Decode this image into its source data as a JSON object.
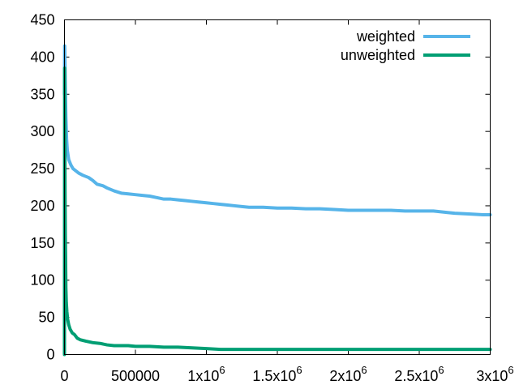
{
  "chart_data": {
    "type": "line",
    "title": "",
    "xlabel": "",
    "ylabel": "",
    "xlim": [
      0,
      3000000
    ],
    "ylim": [
      0,
      450
    ],
    "grid": false,
    "legend_position": "top-right",
    "x_ticks": [
      {
        "value": 0,
        "base": "0",
        "exp": ""
      },
      {
        "value": 500000,
        "base": "500000",
        "exp": ""
      },
      {
        "value": 1000000,
        "base": "1x10",
        "exp": "6"
      },
      {
        "value": 1500000,
        "base": "1.5x10",
        "exp": "6"
      },
      {
        "value": 2000000,
        "base": "2x10",
        "exp": "6"
      },
      {
        "value": 2500000,
        "base": "2.5x10",
        "exp": "6"
      },
      {
        "value": 3000000,
        "base": "3x10",
        "exp": "6"
      }
    ],
    "y_ticks": [
      {
        "value": 0,
        "label": "0"
      },
      {
        "value": 50,
        "label": "50"
      },
      {
        "value": 100,
        "label": "100"
      },
      {
        "value": 150,
        "label": "150"
      },
      {
        "value": 200,
        "label": "200"
      },
      {
        "value": 250,
        "label": "250"
      },
      {
        "value": 300,
        "label": "300"
      },
      {
        "value": 350,
        "label": "350"
      },
      {
        "value": 400,
        "label": "400"
      },
      {
        "value": 450,
        "label": "450"
      }
    ],
    "series": [
      {
        "name": "weighted",
        "color": "#56b4e9",
        "points": [
          [
            0,
            350
          ],
          [
            1500,
            415
          ],
          [
            3000,
            400
          ],
          [
            6000,
            360
          ],
          [
            10000,
            320
          ],
          [
            15000,
            290
          ],
          [
            20000,
            275
          ],
          [
            30000,
            262
          ],
          [
            45000,
            255
          ],
          [
            60000,
            250
          ],
          [
            80000,
            247
          ],
          [
            100000,
            244
          ],
          [
            130000,
            241
          ],
          [
            170000,
            238
          ],
          [
            200000,
            234
          ],
          [
            230000,
            229
          ],
          [
            270000,
            227
          ],
          [
            300000,
            224
          ],
          [
            350000,
            220
          ],
          [
            400000,
            217
          ],
          [
            450000,
            216
          ],
          [
            500000,
            215
          ],
          [
            550000,
            214
          ],
          [
            600000,
            213
          ],
          [
            650000,
            211
          ],
          [
            700000,
            209
          ],
          [
            750000,
            209
          ],
          [
            800000,
            208
          ],
          [
            850000,
            207
          ],
          [
            900000,
            206
          ],
          [
            950000,
            205
          ],
          [
            1000000,
            204
          ],
          [
            1050000,
            203
          ],
          [
            1100000,
            202
          ],
          [
            1150000,
            201
          ],
          [
            1200000,
            200
          ],
          [
            1250000,
            199
          ],
          [
            1300000,
            198
          ],
          [
            1400000,
            198
          ],
          [
            1500000,
            197
          ],
          [
            1600000,
            197
          ],
          [
            1700000,
            196
          ],
          [
            1800000,
            196
          ],
          [
            1900000,
            195
          ],
          [
            2000000,
            194
          ],
          [
            2100000,
            194
          ],
          [
            2200000,
            194
          ],
          [
            2300000,
            194
          ],
          [
            2400000,
            193
          ],
          [
            2500000,
            193
          ],
          [
            2600000,
            193
          ],
          [
            2700000,
            191
          ],
          [
            2750000,
            190
          ],
          [
            2850000,
            189
          ],
          [
            2950000,
            188
          ],
          [
            3000000,
            188
          ]
        ]
      },
      {
        "name": "unweighted",
        "color": "#009e73",
        "points": [
          [
            0,
            0
          ],
          [
            1200,
            385
          ],
          [
            2500,
            300
          ],
          [
            4000,
            220
          ],
          [
            6000,
            160
          ],
          [
            8000,
            130
          ],
          [
            10000,
            90
          ],
          [
            13000,
            70
          ],
          [
            17000,
            58
          ],
          [
            22000,
            48
          ],
          [
            30000,
            40
          ],
          [
            40000,
            34
          ],
          [
            55000,
            29
          ],
          [
            70000,
            27
          ],
          [
            90000,
            22
          ],
          [
            110000,
            20
          ],
          [
            150000,
            18
          ],
          [
            200000,
            16
          ],
          [
            250000,
            15
          ],
          [
            300000,
            13
          ],
          [
            350000,
            12
          ],
          [
            450000,
            12
          ],
          [
            500000,
            11
          ],
          [
            600000,
            11
          ],
          [
            700000,
            10
          ],
          [
            800000,
            10
          ],
          [
            900000,
            9
          ],
          [
            1000000,
            8
          ],
          [
            1100000,
            7
          ],
          [
            1300000,
            7
          ],
          [
            1500000,
            7
          ],
          [
            2000000,
            7
          ],
          [
            2500000,
            7
          ],
          [
            3000000,
            7
          ]
        ]
      }
    ]
  }
}
